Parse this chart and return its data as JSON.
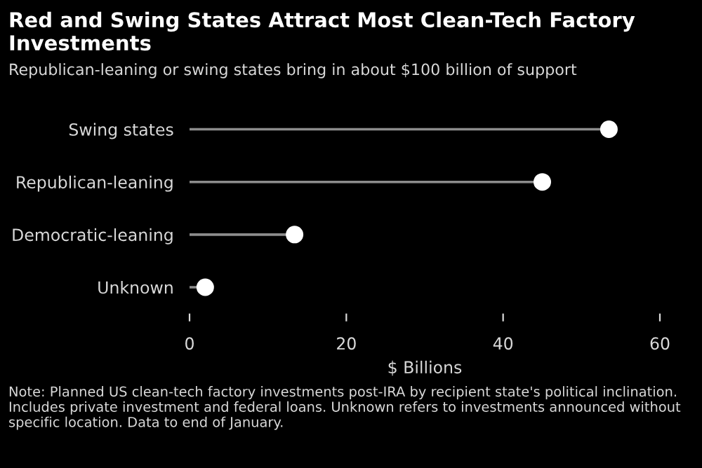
{
  "chart_data": {
    "type": "lollipop",
    "orientation": "horizontal",
    "title": "Red and Swing States Attract Most Clean-Tech Factory Investments",
    "subtitle": "Republican-leaning or swing states bring in about $100 billion of support",
    "categories": [
      "Swing states",
      "Republican-leaning",
      "Democratic-leaning",
      "Unknown"
    ],
    "values": [
      53.5,
      45,
      13.4,
      2
    ],
    "color": "#ffffff",
    "xlabel": "$ Billions",
    "xlim": [
      0,
      60
    ],
    "xticks": [
      0,
      20,
      40,
      60
    ],
    "marker": "circle",
    "annotations": [
      "Note: Planned US clean-tech factory investments post-IRA by recipient state's political inclination. Includes private investment and federal loans. Unknown refers to investments announced without specific location. Data to end of January."
    ]
  }
}
